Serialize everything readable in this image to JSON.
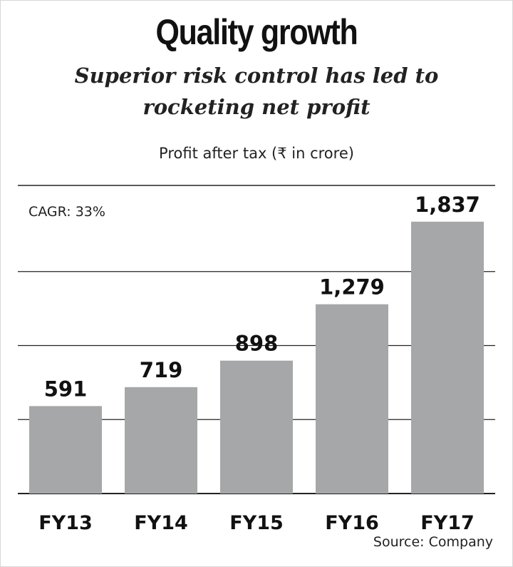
{
  "chart_data": {
    "type": "bar",
    "title": "Quality growth",
    "subtitle": "Superior risk control has led to rocketing net profit",
    "ylabel": "Profit after tax (₹ in crore)",
    "annotation": "CAGR: 33%",
    "source": "Source: Company",
    "categories": [
      "FY13",
      "FY14",
      "FY15",
      "FY16",
      "FY17"
    ],
    "values": [
      591,
      719,
      898,
      1279,
      1837
    ],
    "value_labels": [
      "591",
      "719",
      "898",
      "1,279",
      "1,837"
    ],
    "ylim": [
      0,
      2000
    ],
    "gridlines": [
      0,
      500,
      1000,
      1500
    ],
    "bar_color": "#a6a7a9",
    "grid_color": "#222222"
  }
}
